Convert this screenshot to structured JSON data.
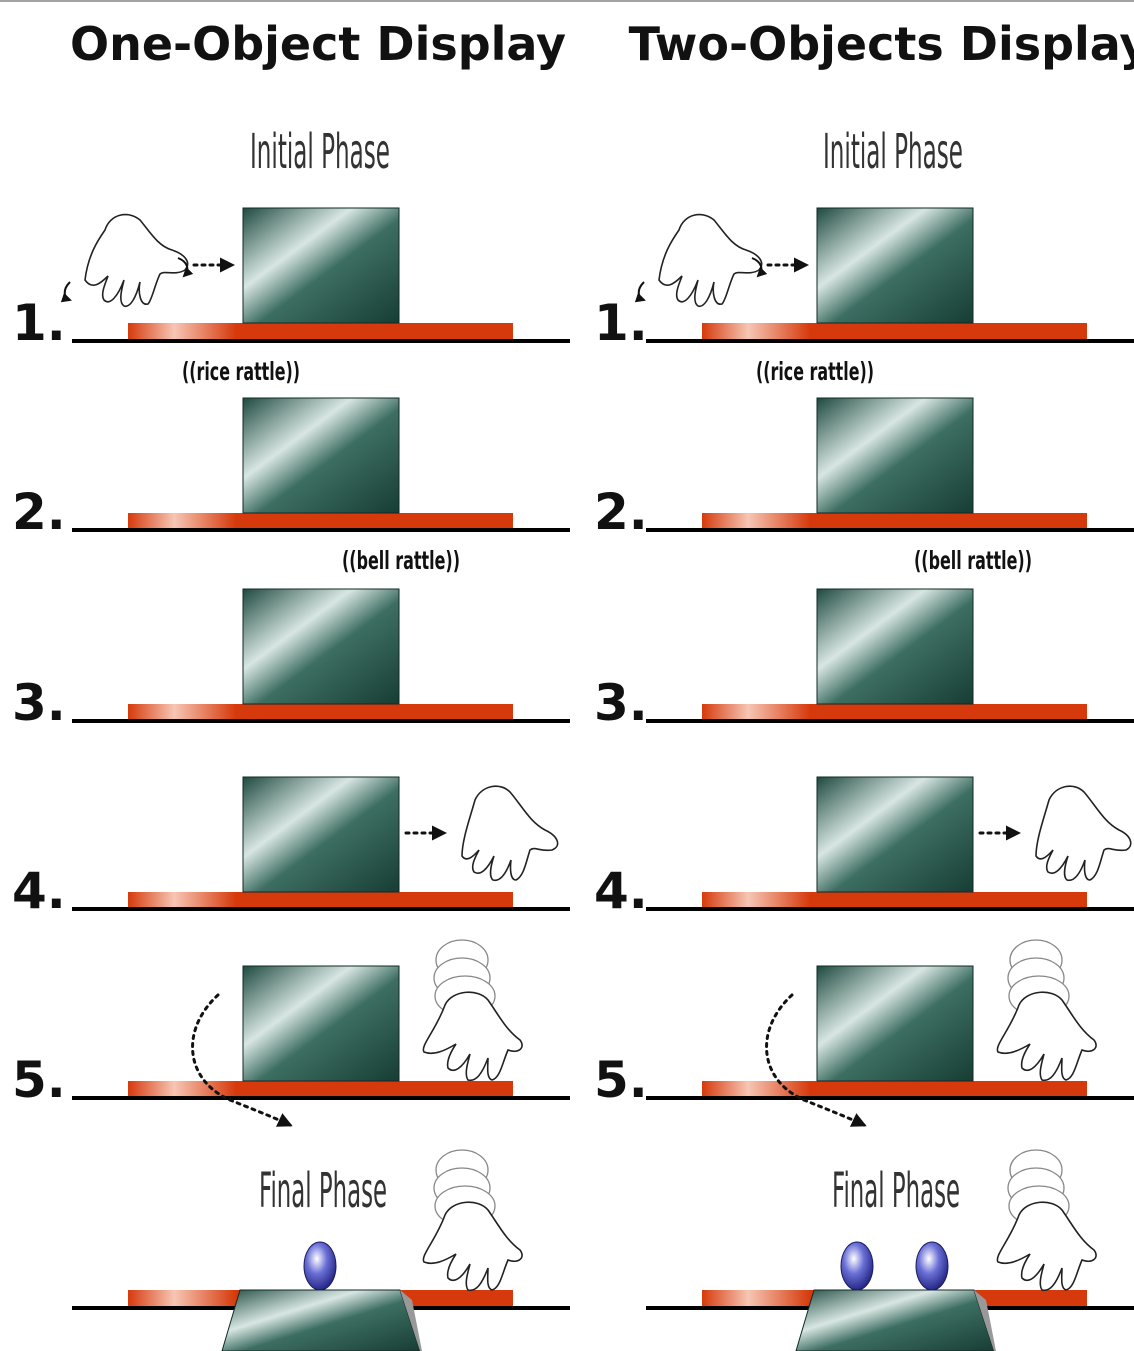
{
  "columns": [
    {
      "title": "One-Object Display",
      "initial_phase": "Initial Phase",
      "final_phase": "Final Phase",
      "steps": [
        "1.",
        "2.",
        "3.",
        "4.",
        "5."
      ],
      "sound_1": "((rice rattle))",
      "sound_2": "((bell rattle))",
      "final_object_count": 1
    },
    {
      "title": "Two-Objects Display",
      "initial_phase": "Initial Phase",
      "final_phase": "Final Phase",
      "steps": [
        "1.",
        "2.",
        "3.",
        "4.",
        "5."
      ],
      "sound_1": "((rice rattle))",
      "sound_2": "((bell rattle))",
      "final_object_count": 2
    }
  ],
  "colors": {
    "screen": "#1f4a40",
    "stage_red": "#d63a0c",
    "floor_line": "#000000",
    "object_blue": "#3a3fb0"
  }
}
